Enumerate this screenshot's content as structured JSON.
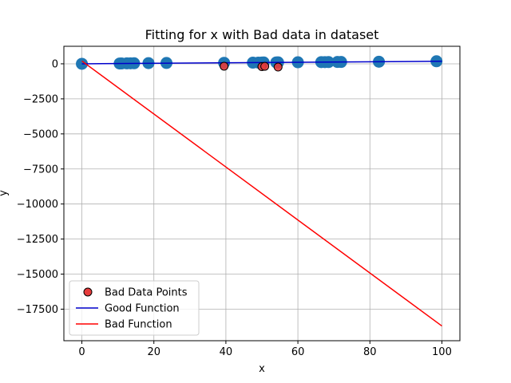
{
  "chart_data": {
    "type": "scatter",
    "title": "Fitting for x with Bad data in dataset",
    "xlabel": "x",
    "ylabel": "y",
    "xlim": [
      -5,
      105
    ],
    "ylim": [
      -19750,
      1250
    ],
    "xticks": [
      0,
      20,
      40,
      60,
      80,
      100
    ],
    "yticks": [
      0,
      -2500,
      -5000,
      -7500,
      -10000,
      -12500,
      -15000,
      -17500
    ],
    "grid": true,
    "legend_position": "lower-left",
    "series": [
      {
        "kind": "scatter",
        "color": "#1f77b4",
        "points": [
          [
            0,
            0
          ],
          [
            10.5,
            20
          ],
          [
            11,
            25
          ],
          [
            12.5,
            30
          ],
          [
            13.5,
            35
          ],
          [
            14.5,
            40
          ],
          [
            18.5,
            50
          ],
          [
            23.5,
            60
          ],
          [
            39.5,
            70
          ],
          [
            47.5,
            80
          ],
          [
            49,
            85
          ],
          [
            50,
            90
          ],
          [
            50.5,
            95
          ],
          [
            54,
            100
          ],
          [
            54.5,
            105
          ],
          [
            60,
            110
          ],
          [
            66.5,
            120
          ],
          [
            67.5,
            122
          ],
          [
            68.5,
            125
          ],
          [
            71,
            130
          ],
          [
            72,
            132
          ],
          [
            82.5,
            150
          ],
          [
            98.5,
            180
          ]
        ]
      },
      {
        "kind": "scatter",
        "name": "Bad Data Points",
        "color": "#e63b3b",
        "points": [
          [
            39.5,
            -170
          ],
          [
            50,
            -200
          ],
          [
            50.8,
            -180
          ],
          [
            54.5,
            -230
          ]
        ]
      },
      {
        "kind": "line",
        "name": "Good Function",
        "color": "#0000cc",
        "points": [
          [
            0,
            0
          ],
          [
            100,
            180
          ]
        ]
      },
      {
        "kind": "line",
        "name": "Bad Function",
        "color": "#ff0000",
        "points": [
          [
            0,
            200
          ],
          [
            100,
            -18700
          ]
        ]
      }
    ],
    "legend": [
      {
        "label": "Bad Data Points",
        "marker": "circle",
        "color": "#e63b3b"
      },
      {
        "label": "Good Function",
        "marker": "line",
        "color": "#0000cc"
      },
      {
        "label": "Bad Function",
        "marker": "line",
        "color": "#ff0000"
      }
    ]
  }
}
